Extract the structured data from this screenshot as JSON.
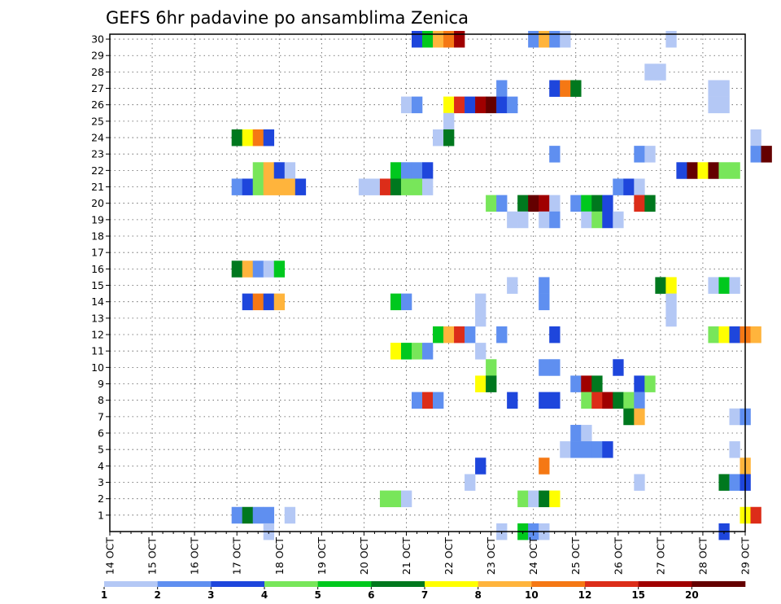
{
  "chart_data": {
    "type": "heatmap",
    "title": "GEFS 6hr padavine po ansamblima Zenica",
    "xlabel": "",
    "ylabel": "",
    "x_tick_labels": [
      "14 OCT",
      "15 OCT",
      "16 OCT",
      "17 OCT",
      "18 OCT",
      "19 OCT",
      "20 OCT",
      "21 OCT",
      "22 OCT",
      "23 OCT",
      "24 OCT",
      "25 OCT",
      "26 OCT",
      "27 OCT",
      "28 OCT",
      "29 OCT"
    ],
    "xlim_days": [
      14,
      29
    ],
    "y_tick_labels": [
      "1",
      "2",
      "3",
      "4",
      "5",
      "6",
      "7",
      "8",
      "9",
      "10",
      "11",
      "12",
      "13",
      "14",
      "15",
      "16",
      "17",
      "18",
      "19",
      "20",
      "21",
      "22",
      "23",
      "24",
      "25",
      "26",
      "27",
      "28",
      "29",
      "30"
    ],
    "ylim": [
      0,
      30
    ],
    "grid": true,
    "legend": {
      "placement": "bottom",
      "colors": [
        "#b4c8f5",
        "#5f8ff0",
        "#1e46dc",
        "#78e65a",
        "#00c81e",
        "#00781e",
        "#ffff00",
        "#ffb43c",
        "#f57814",
        "#dc2d19",
        "#a00000",
        "#640000"
      ],
      "labels": [
        "1",
        "2",
        "3",
        "4",
        "5",
        "6",
        "7",
        "8",
        "10",
        "12",
        "15",
        "20"
      ]
    },
    "cells": [
      [
        30,
        21.25,
        3
      ],
      [
        30,
        21.5,
        5
      ],
      [
        30,
        21.75,
        8
      ],
      [
        30,
        22,
        9
      ],
      [
        30,
        22.25,
        11
      ],
      [
        30,
        24,
        2
      ],
      [
        30,
        24.25,
        8
      ],
      [
        30,
        24.5,
        2
      ],
      [
        30,
        24.75,
        1
      ],
      [
        30,
        27.25,
        1
      ],
      [
        28,
        26.75,
        1
      ],
      [
        28,
        27,
        1
      ],
      [
        27,
        23.25,
        2
      ],
      [
        27,
        24.5,
        3
      ],
      [
        27,
        24.75,
        9
      ],
      [
        27,
        25,
        6
      ],
      [
        27,
        28.25,
        1
      ],
      [
        27,
        28.5,
        1
      ],
      [
        26,
        21,
        1
      ],
      [
        26,
        21.25,
        2
      ],
      [
        26,
        22,
        7
      ],
      [
        26,
        22.25,
        10
      ],
      [
        26,
        22.5,
        3
      ],
      [
        26,
        22.75,
        11
      ],
      [
        26,
        23,
        12
      ],
      [
        26,
        23.25,
        3
      ],
      [
        26,
        23.5,
        2
      ],
      [
        26,
        28.25,
        1
      ],
      [
        26,
        28.5,
        1
      ],
      [
        25,
        22,
        1
      ],
      [
        24,
        17,
        6
      ],
      [
        24,
        17.25,
        7
      ],
      [
        24,
        17.5,
        9
      ],
      [
        24,
        17.75,
        3
      ],
      [
        24,
        21.75,
        1
      ],
      [
        24,
        22,
        6
      ],
      [
        24,
        29.25,
        1
      ],
      [
        23,
        24.5,
        2
      ],
      [
        23,
        26.5,
        2
      ],
      [
        23,
        26.75,
        1
      ],
      [
        23,
        29.25,
        2
      ],
      [
        23,
        29.5,
        12
      ],
      [
        22,
        17.5,
        4
      ],
      [
        22,
        17.75,
        8
      ],
      [
        22,
        18,
        3
      ],
      [
        22,
        18.25,
        1
      ],
      [
        22,
        20.75,
        5
      ],
      [
        22,
        21,
        2
      ],
      [
        22,
        21.25,
        2
      ],
      [
        22,
        21.5,
        3
      ],
      [
        22,
        27.5,
        3
      ],
      [
        22,
        27.75,
        12
      ],
      [
        22,
        28,
        7
      ],
      [
        22,
        28.25,
        12
      ],
      [
        22,
        28.5,
        4
      ],
      [
        22,
        28.75,
        4
      ],
      [
        21,
        17,
        2
      ],
      [
        21,
        17.25,
        3
      ],
      [
        21,
        17.5,
        4
      ],
      [
        21,
        17.75,
        8
      ],
      [
        21,
        18,
        8
      ],
      [
        21,
        18.25,
        8
      ],
      [
        21,
        18.5,
        3
      ],
      [
        21,
        20,
        1
      ],
      [
        21,
        20.25,
        1
      ],
      [
        21,
        20.5,
        10
      ],
      [
        21,
        20.75,
        6
      ],
      [
        21,
        21,
        4
      ],
      [
        21,
        21.25,
        4
      ],
      [
        21,
        21.5,
        1
      ],
      [
        21,
        26,
        2
      ],
      [
        21,
        26.25,
        3
      ],
      [
        21,
        26.5,
        1
      ],
      [
        20,
        23,
        4
      ],
      [
        20,
        23.25,
        2
      ],
      [
        20,
        23.75,
        6
      ],
      [
        20,
        24,
        12
      ],
      [
        20,
        24.25,
        11
      ],
      [
        20,
        24.5,
        1
      ],
      [
        20,
        25,
        2
      ],
      [
        20,
        25.25,
        5
      ],
      [
        20,
        25.5,
        6
      ],
      [
        20,
        25.75,
        3
      ],
      [
        20,
        26.5,
        10
      ],
      [
        20,
        26.75,
        6
      ],
      [
        19,
        23.5,
        1
      ],
      [
        19,
        23.75,
        1
      ],
      [
        19,
        24.25,
        1
      ],
      [
        19,
        24.5,
        2
      ],
      [
        19,
        25.25,
        1
      ],
      [
        19,
        25.5,
        4
      ],
      [
        19,
        25.75,
        3
      ],
      [
        19,
        26,
        1
      ],
      [
        16,
        17,
        6
      ],
      [
        16,
        17.25,
        8
      ],
      [
        16,
        17.5,
        2
      ],
      [
        16,
        17.75,
        1
      ],
      [
        16,
        18,
        5
      ],
      [
        15,
        23.5,
        1
      ],
      [
        15,
        24.25,
        2
      ],
      [
        15,
        27,
        6
      ],
      [
        15,
        27.25,
        7
      ],
      [
        15,
        28.25,
        1
      ],
      [
        15,
        28.5,
        5
      ],
      [
        15,
        28.75,
        1
      ],
      [
        14,
        17.25,
        3
      ],
      [
        14,
        17.5,
        9
      ],
      [
        14,
        17.75,
        3
      ],
      [
        14,
        18,
        8
      ],
      [
        14,
        20.75,
        5
      ],
      [
        14,
        21,
        2
      ],
      [
        14,
        22.75,
        1
      ],
      [
        14,
        24.25,
        2
      ],
      [
        14,
        27.25,
        1
      ],
      [
        13,
        22.75,
        1
      ],
      [
        13,
        27.25,
        1
      ],
      [
        12,
        21.75,
        5
      ],
      [
        12,
        22,
        8
      ],
      [
        12,
        22.25,
        10
      ],
      [
        12,
        22.5,
        2
      ],
      [
        12,
        23.25,
        2
      ],
      [
        12,
        24.5,
        3
      ],
      [
        12,
        28.25,
        4
      ],
      [
        12,
        28.5,
        7
      ],
      [
        12,
        28.75,
        3
      ],
      [
        12,
        29,
        9
      ],
      [
        12,
        29.25,
        8
      ],
      [
        11,
        20.75,
        7
      ],
      [
        11,
        21,
        5
      ],
      [
        11,
        21.25,
        4
      ],
      [
        11,
        21.5,
        2
      ],
      [
        11,
        22.75,
        1
      ],
      [
        10,
        23,
        4
      ],
      [
        10,
        24.25,
        2
      ],
      [
        10,
        24.5,
        2
      ],
      [
        10,
        26,
        3
      ],
      [
        9,
        22.75,
        7
      ],
      [
        9,
        23,
        6
      ],
      [
        9,
        25,
        2
      ],
      [
        9,
        25.25,
        11
      ],
      [
        9,
        25.5,
        6
      ],
      [
        9,
        26.5,
        3
      ],
      [
        9,
        26.75,
        4
      ],
      [
        8,
        21.25,
        2
      ],
      [
        8,
        21.5,
        10
      ],
      [
        8,
        21.75,
        2
      ],
      [
        8,
        23.5,
        3
      ],
      [
        8,
        24.25,
        3
      ],
      [
        8,
        24.5,
        3
      ],
      [
        8,
        25.25,
        4
      ],
      [
        8,
        25.5,
        10
      ],
      [
        8,
        25.75,
        11
      ],
      [
        8,
        26,
        6
      ],
      [
        8,
        26.25,
        4
      ],
      [
        8,
        26.5,
        2
      ],
      [
        7,
        26.25,
        6
      ],
      [
        7,
        26.5,
        8
      ],
      [
        7,
        28.75,
        1
      ],
      [
        7,
        29,
        2
      ],
      [
        6,
        25,
        2
      ],
      [
        6,
        25.25,
        1
      ],
      [
        5,
        24.75,
        1
      ],
      [
        5,
        25,
        2
      ],
      [
        5,
        25.25,
        2
      ],
      [
        5,
        25.5,
        2
      ],
      [
        5,
        25.75,
        3
      ],
      [
        5,
        28.75,
        1
      ],
      [
        4,
        22.75,
        3
      ],
      [
        4,
        24.25,
        9
      ],
      [
        4,
        29,
        8
      ],
      [
        3,
        22.5,
        1
      ],
      [
        3,
        26.5,
        1
      ],
      [
        3,
        28.5,
        6
      ],
      [
        3,
        28.75,
        2
      ],
      [
        3,
        29,
        3
      ],
      [
        2,
        20.5,
        4
      ],
      [
        2,
        20.75,
        4
      ],
      [
        2,
        21,
        1
      ],
      [
        2,
        23.75,
        4
      ],
      [
        2,
        24,
        1
      ],
      [
        2,
        24.25,
        6
      ],
      [
        2,
        24.5,
        7
      ],
      [
        1,
        17,
        2
      ],
      [
        1,
        17.25,
        6
      ],
      [
        1,
        17.5,
        2
      ],
      [
        1,
        17.75,
        2
      ],
      [
        1,
        18.25,
        1
      ],
      [
        1,
        29,
        7
      ],
      [
        1,
        29.25,
        10
      ],
      [
        0,
        17.75,
        1
      ],
      [
        0,
        23.25,
        1
      ],
      [
        0,
        23.75,
        5
      ],
      [
        0,
        24,
        2
      ],
      [
        0,
        24.25,
        1
      ],
      [
        0,
        28.5,
        3
      ]
    ]
  }
}
